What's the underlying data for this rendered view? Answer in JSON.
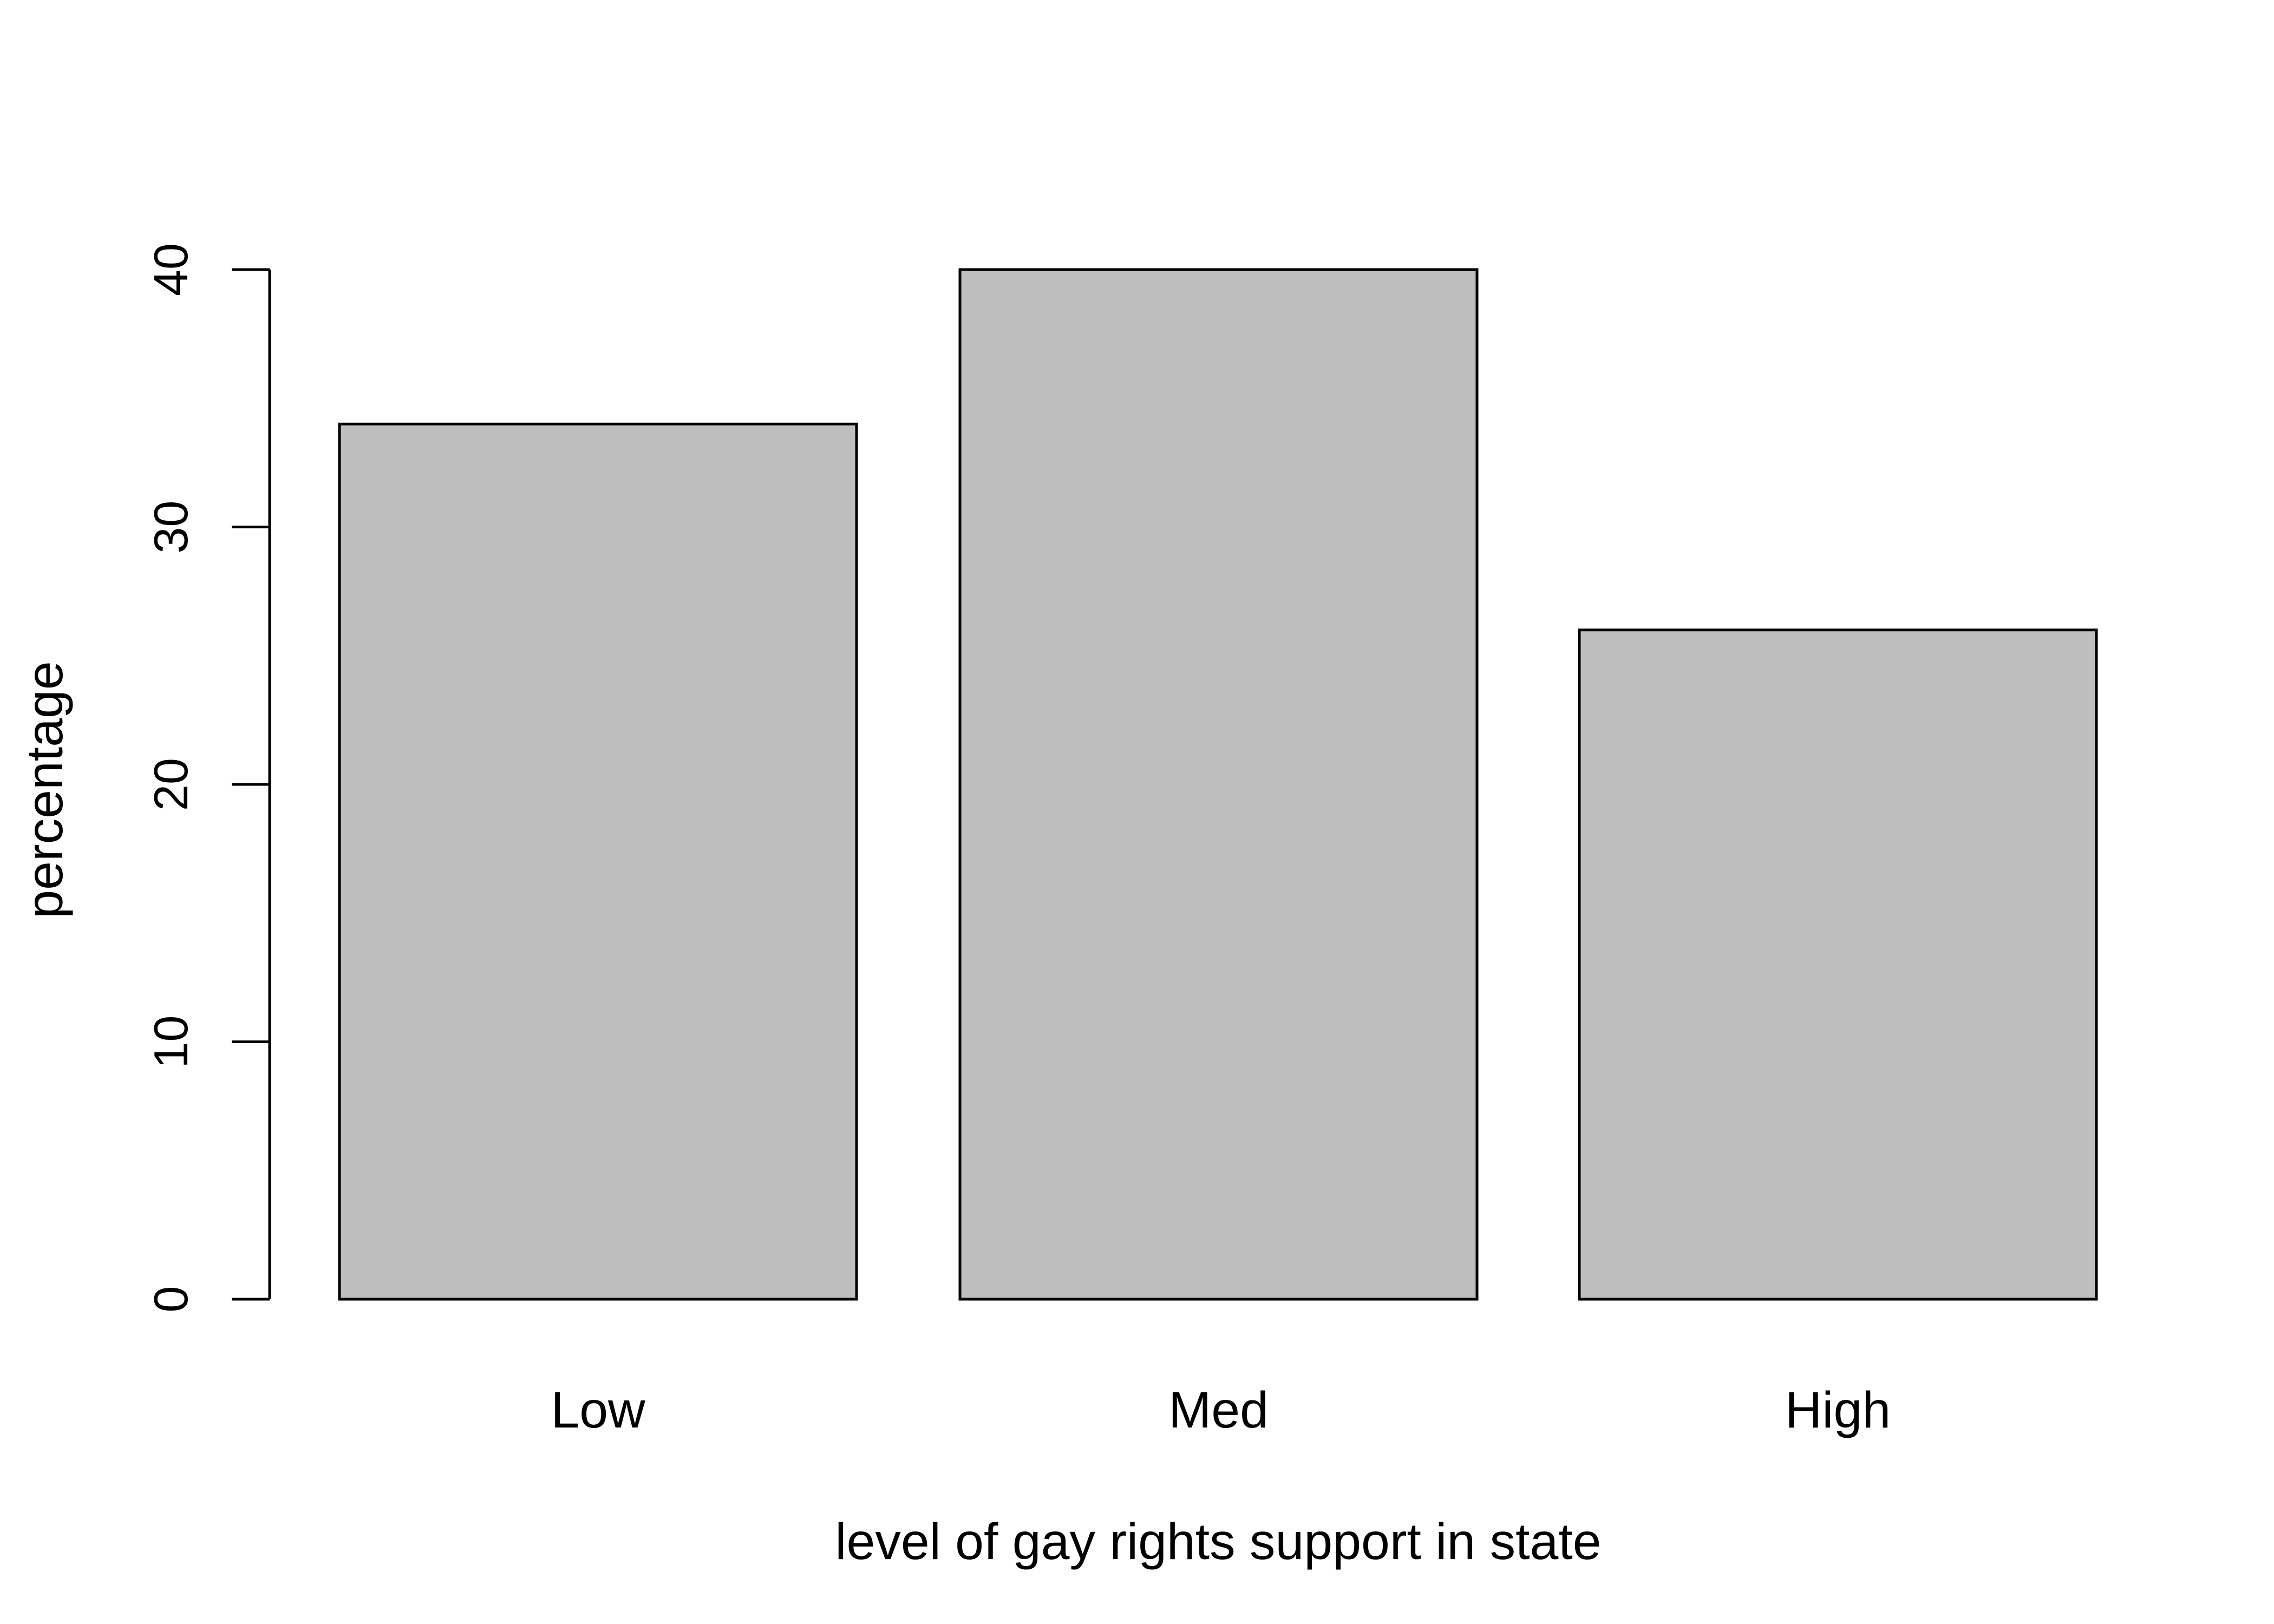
{
  "chart_data": {
    "type": "bar",
    "title": "",
    "xlabel": "level of gay rights support in state",
    "ylabel": "percentage",
    "categories": [
      "Low",
      "Med",
      "High"
    ],
    "values": [
      34,
      40,
      26
    ],
    "ylim": [
      0,
      40
    ],
    "yticks": [
      0,
      10,
      20,
      30,
      40
    ],
    "ytick_labels": [
      "0",
      "10",
      "20",
      "30",
      "40"
    ],
    "grid": false,
    "legend": "none",
    "bar_fill": "#bebebe",
    "bar_stroke": "#000000"
  }
}
